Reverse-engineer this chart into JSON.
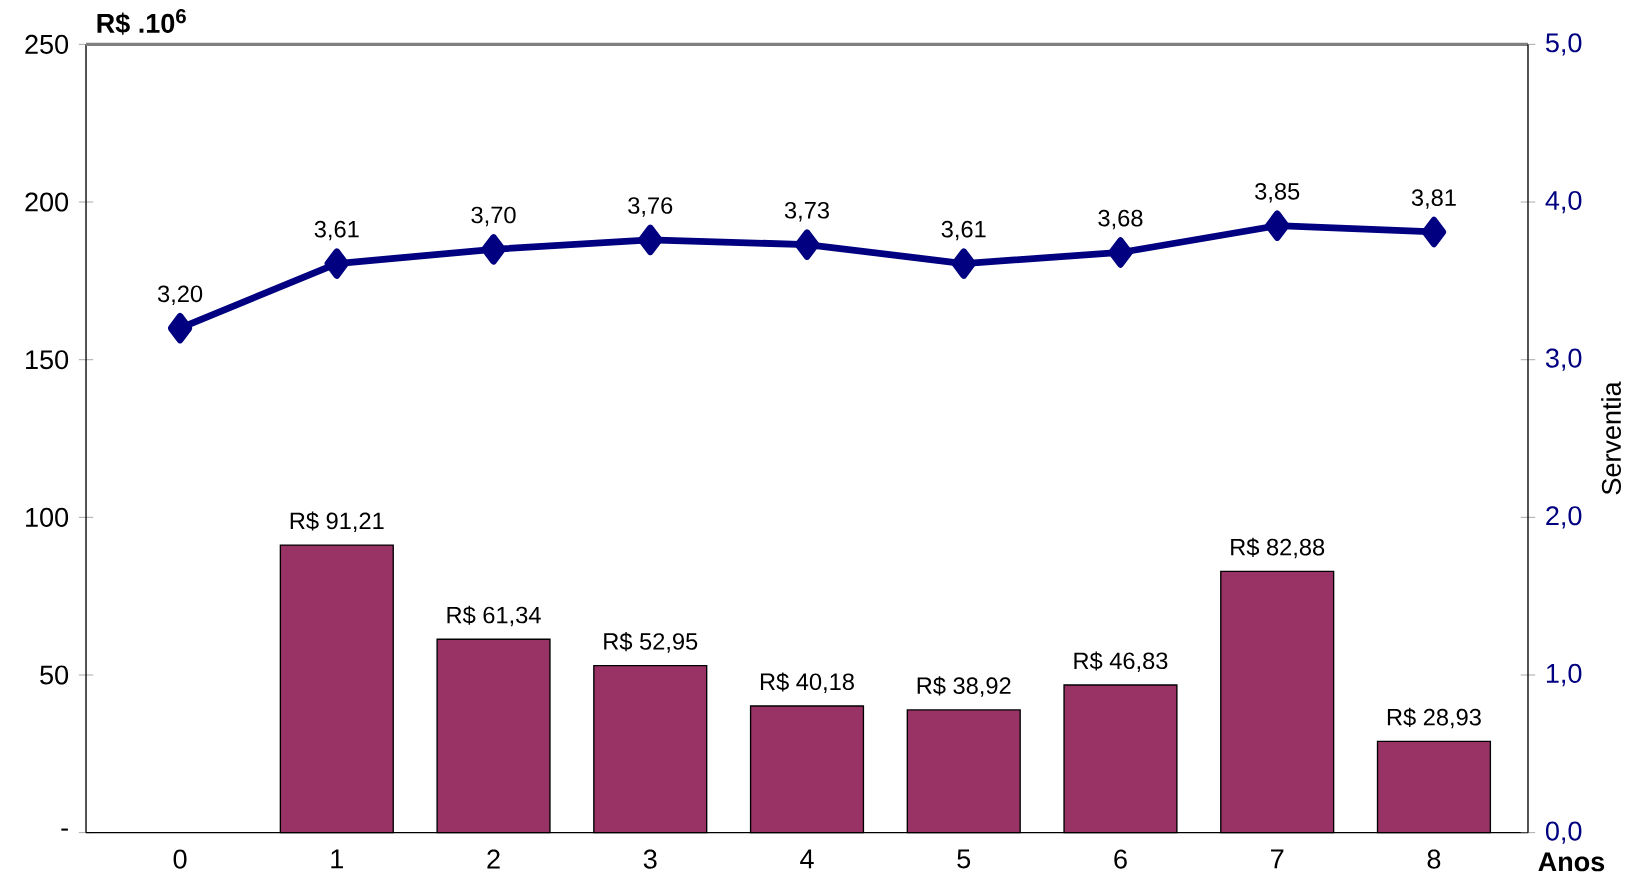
{
  "chart_data": {
    "type": "bar",
    "ylabel": "R$ .10$^{6}$",
    "y2label": "Serventia",
    "xlabel": "Anos",
    "categories": [
      "0",
      "1",
      "2",
      "3",
      "4",
      "5",
      "6",
      "7",
      "8"
    ],
    "series": [
      {
        "color": "#993366",
        "values": [
          null,
          91.21,
          61.34,
          52.95,
          40.18,
          38.92,
          46.83,
          82.88,
          28.93
        ],
        "value_labels": [
          null,
          "R$ 91,21",
          "R$ 61,34",
          "R$ 52,95",
          "R$ 40,18",
          "R$ 38,92",
          "R$ 46,83",
          "R$ 82,88",
          "R$ 28,93"
        ]
      },
      {
        "type": "line",
        "axis": "y2",
        "color": "#000080",
        "marker": "diamond",
        "line_style": "solid",
        "values": [
          3.2,
          3.61,
          3.7,
          3.76,
          3.73,
          3.61,
          3.68,
          3.85,
          3.81
        ],
        "value_labels": [
          "3,20",
          "3,61",
          "3,70",
          "3,76",
          "3,73",
          "3,61",
          "3,68",
          "3,85",
          "3,81"
        ]
      }
    ],
    "ylim": [
      0,
      250
    ],
    "yticks": [
      {
        "value": 0,
        "label": "-"
      },
      50,
      100,
      150,
      200,
      250
    ],
    "y2lim": [
      0,
      5
    ],
    "y2ticks": [
      {
        "value": 0,
        "label": "0,0"
      },
      {
        "value": 1,
        "label": "1,0"
      },
      {
        "value": 2,
        "label": "2,0"
      },
      {
        "value": 3,
        "label": "3,0"
      },
      {
        "value": 4,
        "label": "4,0"
      },
      {
        "value": 5,
        "label": "5,0"
      }
    ],
    "grid": false
  }
}
